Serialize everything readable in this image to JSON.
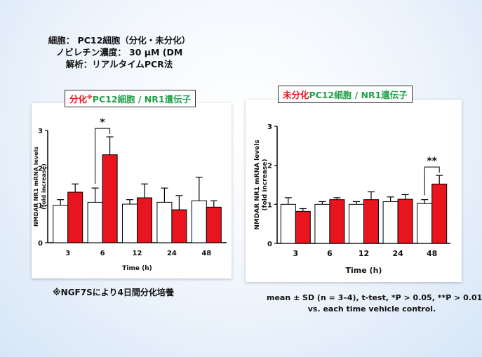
{
  "header": {
    "line1": "細胞： PC12細胞（分化・未分化）",
    "line2": "ノビレチン濃度： 30 μM (DM",
    "line3": "解析：リアルタイムPCR法"
  },
  "left_panel": {
    "title_red": "分化",
    "title_mark": "※",
    "title_green": "PC12細胞 / NR1遺伝子",
    "footnote": "※NGF7Sにより4日間分化培養"
  },
  "right_panel": {
    "title_red": "未分化",
    "title_green": "PC12細胞 / NR1遺伝子",
    "note_line1": "mean ± SD (n = 3–4), t-test, *P > 0.05, **P > 0.01",
    "note_line2": "vs. each time vehicle control."
  },
  "colors": {
    "control": "#ffffff",
    "treated": "#e8141e",
    "title_red": "#e8141e",
    "title_green": "#22a04a"
  },
  "chart_data": [
    {
      "type": "bar",
      "ylabel": "NMDAR NR1 mRNA levels\n(fold increase)",
      "xlabel": "Time (h)",
      "categories": [
        "3",
        "6",
        "12",
        "24",
        "48"
      ],
      "ylim": [
        0,
        3
      ],
      "yticks": [
        "0",
        "1",
        "2",
        "3"
      ],
      "series": [
        {
          "values": [
            1.0,
            1.08,
            1.03,
            1.08,
            1.12
          ],
          "errors": [
            0.15,
            0.38,
            0.12,
            0.38,
            0.63
          ]
        },
        {
          "values": [
            1.35,
            2.35,
            1.2,
            0.88,
            0.95
          ],
          "errors": [
            0.22,
            0.48,
            0.37,
            0.38,
            0.17
          ]
        }
      ],
      "annotations": [
        {
          "category": "6",
          "text": "*"
        }
      ]
    },
    {
      "type": "bar",
      "ylabel": "NMDAR NR1 mRNA levels\n(fold increase)",
      "xlabel": "Time (h)",
      "categories": [
        "3",
        "6",
        "12",
        "24",
        "48"
      ],
      "ylim": [
        0,
        3
      ],
      "yticks": [
        "0",
        "1",
        "2",
        "3"
      ],
      "series": [
        {
          "values": [
            1.0,
            1.0,
            1.0,
            1.07,
            1.02
          ],
          "errors": [
            0.17,
            0.07,
            0.07,
            0.12,
            0.1
          ]
        },
        {
          "values": [
            0.82,
            1.12,
            1.12,
            1.13,
            1.52
          ],
          "errors": [
            0.07,
            0.05,
            0.2,
            0.12,
            0.22
          ]
        }
      ],
      "annotations": [
        {
          "category": "48",
          "text": "**"
        }
      ]
    }
  ]
}
